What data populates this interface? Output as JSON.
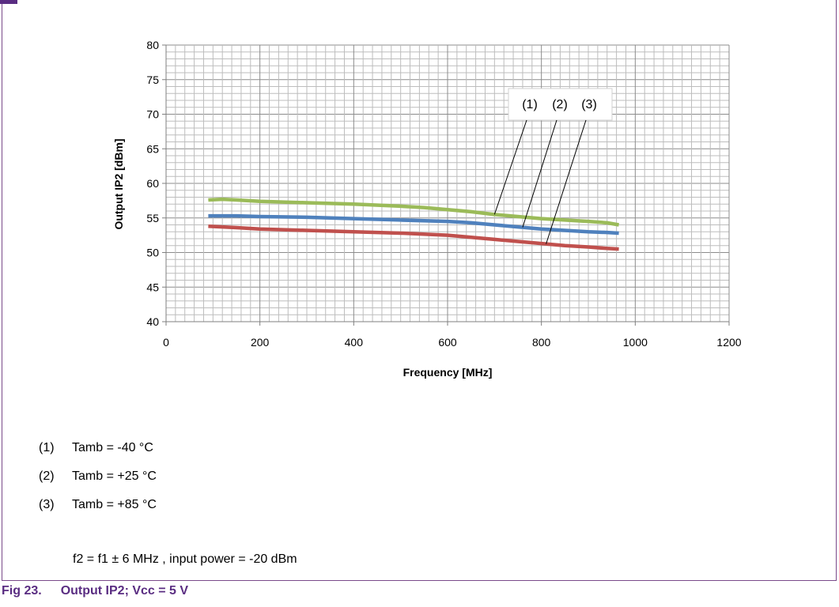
{
  "chart_data": {
    "type": "line",
    "xlabel": "Frequency [MHz]",
    "ylabel": "Output IP2 [dBm]",
    "xlim": [
      0,
      1200
    ],
    "ylim": [
      40,
      80
    ],
    "x_ticks": [
      0,
      200,
      400,
      600,
      800,
      1000,
      1200
    ],
    "y_ticks": [
      40,
      45,
      50,
      55,
      60,
      65,
      70,
      75,
      80
    ],
    "grid": true,
    "series": [
      {
        "name": "(1)",
        "color": "#9bbb59",
        "x": [
          90,
          120,
          150,
          200,
          300,
          400,
          500,
          550,
          600,
          650,
          700,
          750,
          800,
          850,
          900,
          940,
          965
        ],
        "y": [
          57.6,
          57.7,
          57.6,
          57.4,
          57.2,
          57.0,
          56.7,
          56.5,
          56.2,
          55.9,
          55.5,
          55.2,
          54.9,
          54.7,
          54.5,
          54.3,
          54.0
        ]
      },
      {
        "name": "(2)",
        "color": "#4f81bd",
        "x": [
          90,
          150,
          200,
          300,
          400,
          500,
          600,
          650,
          700,
          750,
          800,
          850,
          900,
          940,
          965
        ],
        "y": [
          55.3,
          55.3,
          55.2,
          55.1,
          54.9,
          54.7,
          54.5,
          54.3,
          54.0,
          53.7,
          53.4,
          53.2,
          53.0,
          52.9,
          52.8
        ]
      },
      {
        "name": "(3)",
        "color": "#c0504d",
        "x": [
          90,
          150,
          200,
          300,
          400,
          500,
          600,
          650,
          700,
          750,
          800,
          850,
          900,
          940,
          965
        ],
        "y": [
          53.8,
          53.6,
          53.4,
          53.2,
          53.0,
          52.8,
          52.5,
          52.2,
          51.9,
          51.6,
          51.3,
          51.0,
          50.8,
          50.6,
          50.5
        ]
      }
    ],
    "annotations": [
      "(1)",
      "(2)",
      "(3)"
    ]
  },
  "legend": [
    {
      "num": "(1)",
      "text": "Tamb = -40 °C"
    },
    {
      "num": "(2)",
      "text": "Tamb = +25 °C"
    },
    {
      "num": "(3)",
      "text": "Tamb = +85 °C"
    }
  ],
  "note": "f2 = f1 ± 6 MHz , input power = -20 dBm",
  "caption": {
    "label": "Fig 23.",
    "title": "Output IP2; Vcc = 5 V"
  }
}
